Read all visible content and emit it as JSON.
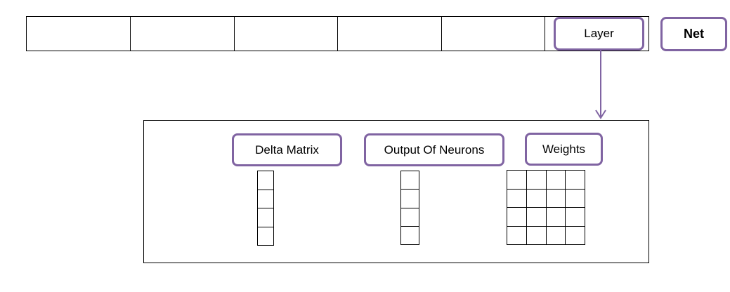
{
  "top_array": {
    "cell_count": 6
  },
  "labels": {
    "layer": "Layer",
    "net": "Net",
    "delta_matrix": "Delta Matrix",
    "output_of_neurons": "Output Of Neurons",
    "weights": "Weights"
  },
  "structures": {
    "delta_matrix": {
      "rows": 4,
      "cols": 1
    },
    "output_of_neurons": {
      "rows": 4,
      "cols": 1
    },
    "weights": {
      "rows": 4,
      "cols": 4
    }
  },
  "colors": {
    "accent": "#8064a2",
    "line": "#000000"
  }
}
